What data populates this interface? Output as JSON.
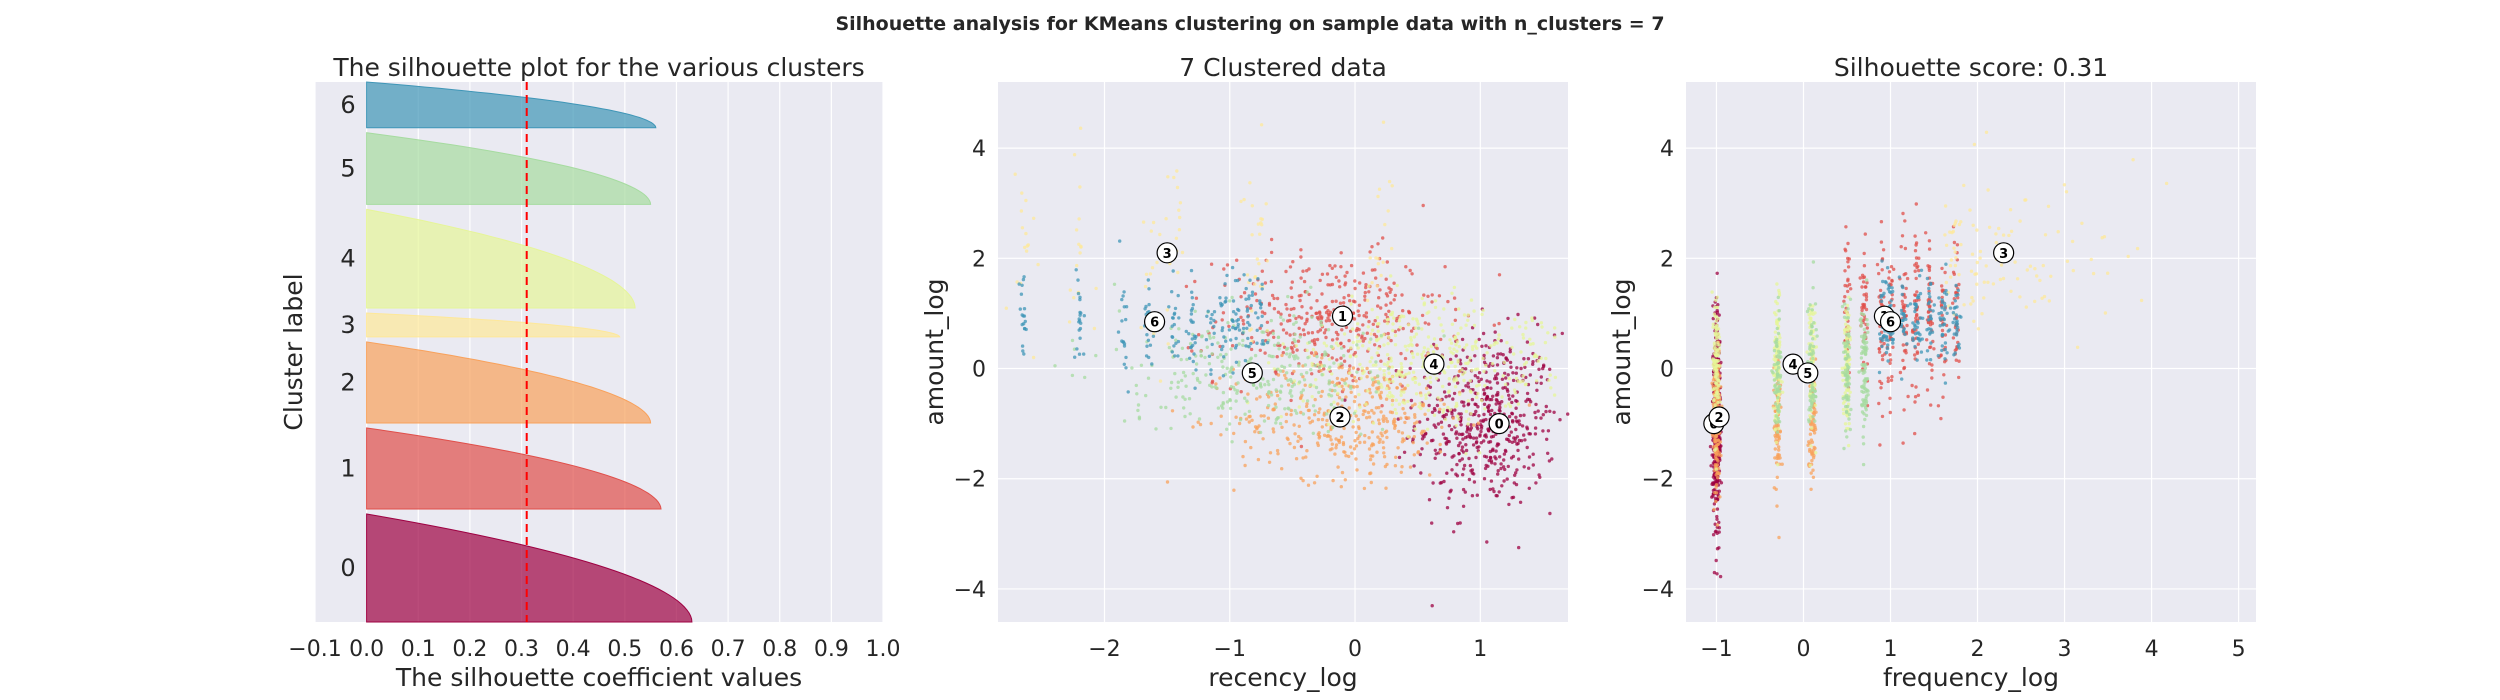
{
  "suptitle": "Silhouette analysis for KMeans clustering on sample data with n_clusters = 7",
  "colors": {
    "background": "#eaeaf2",
    "grid": "#ffffff",
    "avg_line": "#ff0000",
    "clusters": [
      "#9e0142",
      "#e04f4a",
      "#f8a15b",
      "#fee899",
      "#e6f598",
      "#a6dba0",
      "#3f96b7"
    ]
  },
  "chart_data": [
    {
      "type": "area",
      "title": "The silhouette plot for the various clusters",
      "xlabel": "The silhouette coefficient values",
      "ylabel": "Cluster label",
      "xlim": [
        -0.1,
        1.0
      ],
      "xticks": [
        "−0.1",
        "0.0",
        "0.1",
        "0.2",
        "0.3",
        "0.4",
        "0.5",
        "0.6",
        "0.7",
        "0.8",
        "0.9",
        "1.0"
      ],
      "average_silhouette_score": 0.31,
      "cluster_labels": [
        "0",
        "1",
        "2",
        "3",
        "4",
        "5",
        "6"
      ],
      "cluster_max_values": [
        0.63,
        0.57,
        0.55,
        0.49,
        0.52,
        0.55,
        0.56
      ],
      "cluster_min_values": [
        -0.01,
        -0.01,
        -0.05,
        -0.09,
        -0.04,
        -0.01,
        0.0
      ],
      "cluster_relative_sizes": [
        1040,
        780,
        780,
        230,
        950,
        690,
        440
      ]
    },
    {
      "type": "scatter",
      "title": "7 Clustered data",
      "xlabel": "recency_log",
      "ylabel": "amount_log",
      "xlim": [
        -2.85,
        1.7
      ],
      "ylim": [
        -4.6,
        5.2
      ],
      "xticks": [
        "−2",
        "−1",
        "0",
        "1"
      ],
      "yticks": [
        "−4",
        "−2",
        "0",
        "2",
        "4"
      ],
      "centers": [
        {
          "label": "0",
          "x": 1.15,
          "y": -1.0
        },
        {
          "label": "1",
          "x": -0.1,
          "y": 0.95
        },
        {
          "label": "2",
          "x": -0.12,
          "y": -0.88
        },
        {
          "label": "3",
          "x": -1.5,
          "y": 2.1
        },
        {
          "label": "4",
          "x": 0.63,
          "y": 0.08
        },
        {
          "label": "5",
          "x": -0.82,
          "y": -0.08
        },
        {
          "label": "6",
          "x": -1.6,
          "y": 0.85
        }
      ]
    },
    {
      "type": "scatter",
      "title": "Silhouette score: 0.31",
      "xlabel": "frequency_log",
      "ylabel": "amount_log",
      "xlim": [
        -1.35,
        5.2
      ],
      "ylim": [
        -4.6,
        5.2
      ],
      "xticks": [
        "−1",
        "0",
        "1",
        "2",
        "3",
        "4",
        "5"
      ],
      "yticks": [
        "−4",
        "−2",
        "0",
        "2",
        "4"
      ],
      "centers": [
        {
          "label": "0",
          "x": -1.03,
          "y": -1.0
        },
        {
          "label": "1",
          "x": 0.93,
          "y": 0.95
        },
        {
          "label": "2",
          "x": -0.97,
          "y": -0.88
        },
        {
          "label": "3",
          "x": 2.3,
          "y": 2.1
        },
        {
          "label": "4",
          "x": -0.12,
          "y": 0.08
        },
        {
          "label": "5",
          "x": 0.05,
          "y": -0.08
        },
        {
          "label": "6",
          "x": 1.0,
          "y": 0.85
        }
      ]
    }
  ]
}
